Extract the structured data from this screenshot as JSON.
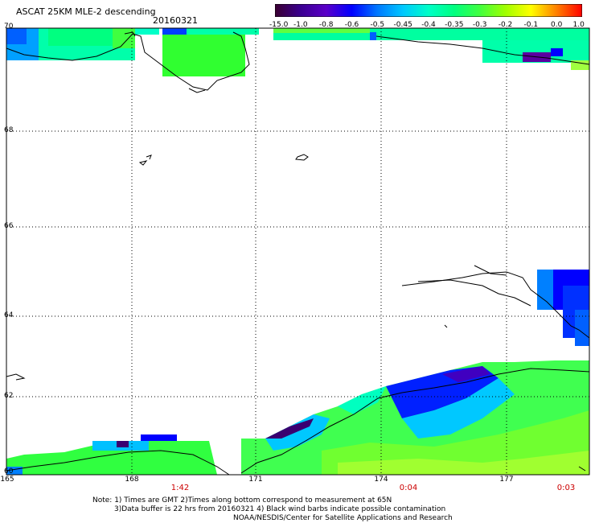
{
  "header": {
    "title": "ASCAT 25KM MLE-2 descending",
    "date": "20160321"
  },
  "colorbar": {
    "labels": [
      "-15.0",
      "-1.0",
      "-0.8",
      "-0.6",
      "-0.5",
      "-0.45",
      "-0.4",
      "-0.35",
      "-0.3",
      "-0.2",
      "-0.1",
      "0.0",
      "1.0"
    ],
    "colors": [
      "#3a0030",
      "#3a0090",
      "#5a00c8",
      "#0000ff",
      "#0078ff",
      "#00c8ff",
      "#00ffc8",
      "#00ff80",
      "#40ff40",
      "#a0ff00",
      "#ffff00",
      "#ff8000",
      "#ff0000"
    ]
  },
  "map": {
    "lat_labels": [
      "70",
      "68",
      "66",
      "64",
      "62",
      "60"
    ],
    "lon_labels": [
      "165",
      "168",
      "171",
      "174",
      "177"
    ],
    "time_labels": [
      "1:42",
      "0:04",
      "0:03"
    ]
  },
  "footer": {
    "note1": "Note: 1) Times are GMT 2)Times along bottom correspond to measurement at 65N",
    "note2": "3)Data buffer is 22 hrs from 20160321 4) Black wind barbs indicate possible contamination",
    "note3": "NOAA/NESDIS/Center for Satellite Applications and Research"
  }
}
